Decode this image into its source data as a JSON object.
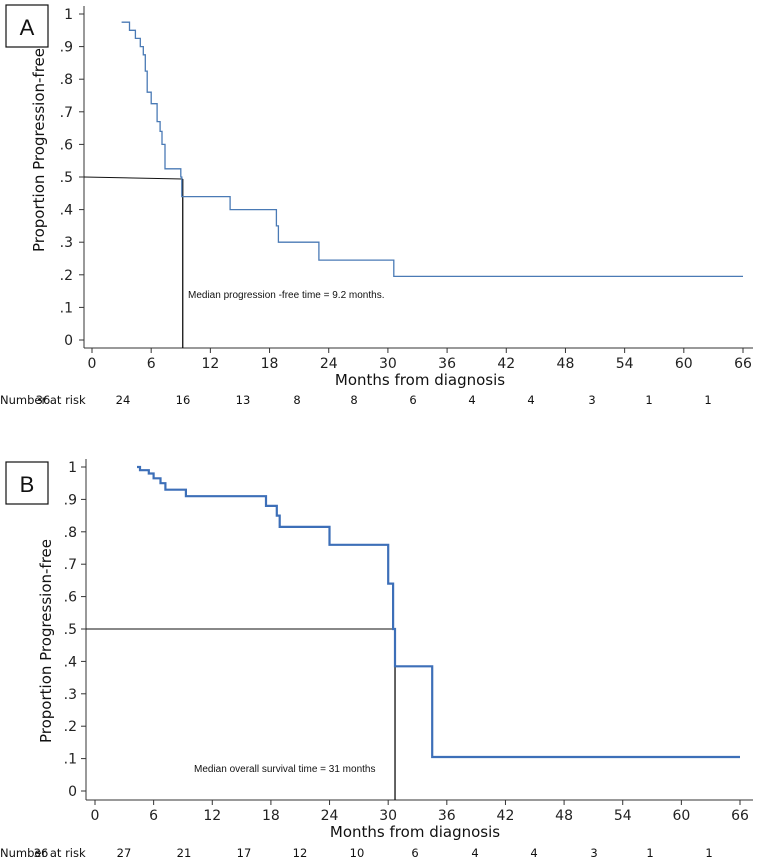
{
  "chart_data": [
    {
      "panel": "A",
      "type": "line",
      "ylabel": "Proportion Progression-free",
      "xlabel": "Months from diagnosis",
      "xlim": [
        0,
        66
      ],
      "ylim": [
        0,
        1
      ],
      "x_ticks": [
        "0",
        "6",
        "12",
        "18",
        "24",
        "30",
        "36",
        "42",
        "48",
        "54",
        "60",
        "66"
      ],
      "y_ticks": [
        "0",
        ".1",
        ".2",
        ".3",
        ".4",
        ".5",
        ".6",
        ".7",
        ".8",
        ".9",
        "1"
      ],
      "series": [
        {
          "name": "Progression-free survival",
          "color": "#4a7ab5",
          "points": [
            [
              3.0,
              0.975
            ],
            [
              3.8,
              0.975
            ],
            [
              3.8,
              0.95
            ],
            [
              4.4,
              0.95
            ],
            [
              4.4,
              0.925
            ],
            [
              4.9,
              0.925
            ],
            [
              4.9,
              0.9
            ],
            [
              5.2,
              0.9
            ],
            [
              5.2,
              0.875
            ],
            [
              5.4,
              0.875
            ],
            [
              5.4,
              0.825
            ],
            [
              5.6,
              0.825
            ],
            [
              5.6,
              0.76
            ],
            [
              6.0,
              0.76
            ],
            [
              6.0,
              0.725
            ],
            [
              6.6,
              0.725
            ],
            [
              6.6,
              0.67
            ],
            [
              6.9,
              0.67
            ],
            [
              6.9,
              0.64
            ],
            [
              7.1,
              0.64
            ],
            [
              7.1,
              0.6
            ],
            [
              7.4,
              0.6
            ],
            [
              7.4,
              0.525
            ],
            [
              9.0,
              0.525
            ],
            [
              9.0,
              0.5
            ],
            [
              9.1,
              0.5
            ],
            [
              9.1,
              0.44
            ],
            [
              14.0,
              0.44
            ],
            [
              14.0,
              0.4
            ],
            [
              18.7,
              0.4
            ],
            [
              18.7,
              0.35
            ],
            [
              18.9,
              0.35
            ],
            [
              18.9,
              0.3
            ],
            [
              23.0,
              0.3
            ],
            [
              23.0,
              0.245
            ],
            [
              30.6,
              0.245
            ],
            [
              30.6,
              0.195
            ],
            [
              66.0,
              0.195
            ]
          ]
        }
      ],
      "median_line": {
        "y": 0.5,
        "x": 9.2
      },
      "annotation": "Median progression -free time = 9.2 months.",
      "number_at_risk_label": "Number at risk",
      "number_at_risk": [
        "36",
        "24",
        "16",
        "13",
        "8",
        "8",
        "6",
        "4",
        "4",
        "3",
        "1",
        "1"
      ]
    },
    {
      "panel": "B",
      "type": "line",
      "ylabel": "Proportion Progression-free",
      "xlabel": "Months from diagnosis",
      "xlim": [
        0,
        66
      ],
      "ylim": [
        0,
        1
      ],
      "x_ticks": [
        "0",
        "6",
        "12",
        "18",
        "24",
        "30",
        "36",
        "42",
        "48",
        "54",
        "60",
        "66"
      ],
      "y_ticks": [
        "0",
        ".1",
        ".2",
        ".3",
        ".4",
        ".5",
        ".6",
        ".7",
        ".8",
        ".9",
        "1"
      ],
      "series": [
        {
          "name": "Overall survival",
          "color": "#3d6fb8",
          "points": [
            [
              4.3,
              1.0
            ],
            [
              4.6,
              1.0
            ],
            [
              4.6,
              0.99
            ],
            [
              5.5,
              0.99
            ],
            [
              5.5,
              0.98
            ],
            [
              6.0,
              0.98
            ],
            [
              6.0,
              0.965
            ],
            [
              6.7,
              0.965
            ],
            [
              6.7,
              0.95
            ],
            [
              7.2,
              0.95
            ],
            [
              7.2,
              0.93
            ],
            [
              9.3,
              0.93
            ],
            [
              9.3,
              0.91
            ],
            [
              17.5,
              0.91
            ],
            [
              17.5,
              0.88
            ],
            [
              18.6,
              0.88
            ],
            [
              18.6,
              0.85
            ],
            [
              18.9,
              0.85
            ],
            [
              18.9,
              0.815
            ],
            [
              24.0,
              0.815
            ],
            [
              24.0,
              0.76
            ],
            [
              30.0,
              0.76
            ],
            [
              30.0,
              0.64
            ],
            [
              30.5,
              0.64
            ],
            [
              30.5,
              0.5
            ],
            [
              30.7,
              0.5
            ],
            [
              30.7,
              0.385
            ],
            [
              34.5,
              0.385
            ],
            [
              34.5,
              0.105
            ],
            [
              66.0,
              0.105
            ]
          ]
        }
      ],
      "median_line": {
        "y": 0.5,
        "x": 30.7
      },
      "annotation": "Median overall survival time = 31 months",
      "number_at_risk_label": "Number at risk",
      "number_at_risk": [
        "36",
        "27",
        "21",
        "17",
        "12",
        "10",
        "6",
        "4",
        "4",
        "3",
        "1",
        "1"
      ]
    }
  ]
}
